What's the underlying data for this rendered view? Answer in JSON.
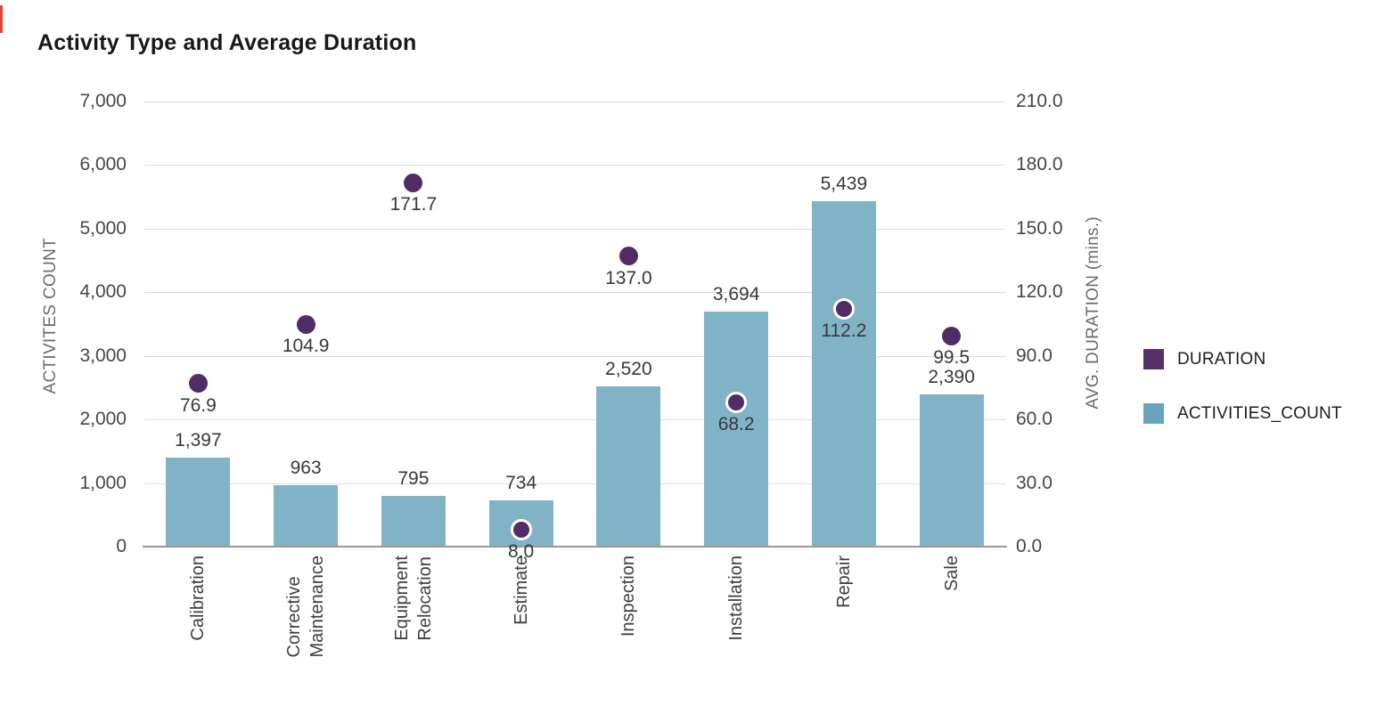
{
  "decor": {
    "corner_mark_color": "#e8432e"
  },
  "chart_data": {
    "type": "bar",
    "subtype": "dual-axis combo: bars (left axis) + point markers (right axis)",
    "title": "Activity Type and Average Duration",
    "categories": [
      "Calibration",
      "Corrective\nMaintenance",
      "Equipment\nRelocation",
      "Estimate",
      "Inspection",
      "Installation",
      "Repair",
      "Sale"
    ],
    "series": [
      {
        "name": "ACTIVITIES_COUNT",
        "mark": "bar",
        "axis": "left",
        "color": "#81b3c7",
        "values": [
          1397,
          963,
          795,
          734,
          2520,
          3694,
          5439,
          2390
        ],
        "labels": [
          "1,397",
          "963",
          "795",
          "734",
          "2,520",
          "3,694",
          "5,439",
          "2,390"
        ]
      },
      {
        "name": "DURATION",
        "mark": "point",
        "axis": "right",
        "color": "#512c66",
        "values": [
          76.9,
          104.9,
          171.7,
          8.0,
          137.0,
          68.2,
          112.2,
          99.5
        ],
        "labels": [
          "76.9",
          "104.9",
          "171.7",
          "8.0",
          "137.0",
          "68.2",
          "112.2",
          "99.5"
        ],
        "ring": [
          false,
          false,
          false,
          true,
          false,
          true,
          true,
          false
        ]
      }
    ],
    "left_axis": {
      "title": "ACTIVITES COUNT",
      "min": 0,
      "max": 7000,
      "step": 1000,
      "tick_labels": [
        "0",
        "1,000",
        "2,000",
        "3,000",
        "4,000",
        "5,000",
        "6,000",
        "7,000"
      ]
    },
    "right_axis": {
      "title": "AVG. DURATION (mins.)",
      "min": 0,
      "max": 210,
      "step": 30,
      "tick_labels": [
        "0.0",
        "30.0",
        "60.0",
        "90.0",
        "120.0",
        "150.0",
        "180.0",
        "210.0"
      ]
    },
    "legend": [
      {
        "label": "DURATION",
        "color": "#563168"
      },
      {
        "label": "ACTIVITIES_COUNT",
        "color": "#68a5bc"
      }
    ],
    "grid": true,
    "gridline_color": "#d8dce1",
    "baseline_color": "#989898",
    "legend_position": "right"
  }
}
